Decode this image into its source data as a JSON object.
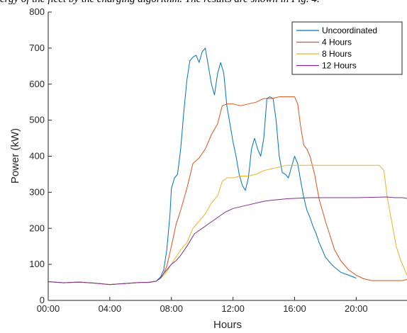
{
  "caption": "ergy of the fleet by the charging algorithm. The results are shown in Fig. 4.",
  "chart_data": {
    "type": "line",
    "title": "",
    "xlabel": "Hours",
    "ylabel": "Power (kW)",
    "xlim": [
      0,
      23.3
    ],
    "ylim": [
      0,
      800
    ],
    "xticks": [
      0,
      4,
      8,
      12,
      16,
      20
    ],
    "xtick_labels": [
      "00:00",
      "04:00",
      "08:00",
      "12:00",
      "16:00",
      "20:00"
    ],
    "yticks": [
      0,
      100,
      200,
      300,
      400,
      500,
      600,
      700,
      800
    ],
    "ytick_labels": [
      "0",
      "100",
      "200",
      "300",
      "400",
      "500",
      "600",
      "700",
      "800"
    ],
    "grid": false,
    "legend_position": "top-right",
    "series": [
      {
        "name": "Uncoordinated",
        "color": "#0072BD",
        "x": [
          0,
          1,
          2,
          3,
          4,
          5,
          6,
          6.5,
          7,
          7.3,
          7.5,
          7.7,
          7.9,
          8.0,
          8.2,
          8.4,
          8.6,
          8.8,
          9.0,
          9.2,
          9.4,
          9.6,
          9.8,
          10.0,
          10.2,
          10.4,
          10.6,
          10.8,
          11.0,
          11.2,
          11.4,
          11.6,
          11.8,
          12.0,
          12.2,
          12.4,
          12.6,
          12.8,
          13.0,
          13.2,
          13.4,
          13.6,
          13.8,
          14.0,
          14.2,
          14.4,
          14.6,
          14.8,
          15.0,
          15.2,
          15.4,
          15.6,
          15.8,
          16.0,
          16.2,
          16.4,
          16.6,
          16.8,
          17.0,
          17.2,
          17.4,
          17.6,
          17.8,
          18.0,
          18.2,
          18.4,
          18.6,
          18.8,
          19.0,
          19.5,
          20.0
        ],
        "y": [
          52,
          49,
          51,
          48,
          44,
          47,
          50,
          50,
          53,
          65,
          85,
          140,
          235,
          310,
          340,
          350,
          420,
          520,
          610,
          665,
          675,
          680,
          660,
          690,
          700,
          650,
          600,
          570,
          630,
          660,
          630,
          540,
          490,
          440,
          400,
          350,
          320,
          305,
          340,
          420,
          450,
          420,
          400,
          450,
          560,
          565,
          560,
          500,
          400,
          355,
          350,
          340,
          370,
          400,
          380,
          330,
          285,
          250,
          230,
          205,
          185,
          160,
          140,
          120,
          110,
          100,
          92,
          85,
          78,
          70,
          62
        ]
      },
      {
        "name": "4 Hours",
        "color": "#D95319",
        "x": [
          0,
          1,
          2,
          3,
          4,
          5,
          6,
          6.5,
          7,
          7.3,
          7.5,
          7.7,
          8.0,
          8.3,
          8.6,
          9.0,
          9.4,
          9.8,
          10.2,
          10.6,
          11.0,
          11.3,
          11.6,
          12.0,
          12.5,
          13.0,
          13.5,
          14.0,
          14.5,
          15.0,
          15.5,
          16.0,
          16.2,
          16.4,
          16.6,
          16.8,
          17.0,
          17.3,
          17.6,
          18.0,
          18.3,
          18.6,
          19.0,
          19.5,
          20.0,
          20.5,
          21.0,
          21.5,
          22.0,
          22.5,
          23.0,
          23.3
        ],
        "y": [
          52,
          49,
          51,
          48,
          44,
          47,
          50,
          50,
          53,
          62,
          75,
          95,
          150,
          210,
          250,
          310,
          380,
          395,
          420,
          460,
          490,
          540,
          545,
          545,
          540,
          545,
          550,
          560,
          560,
          565,
          565,
          565,
          545,
          480,
          430,
          420,
          400,
          350,
          280,
          220,
          180,
          140,
          110,
          85,
          70,
          60,
          55,
          55,
          55,
          55,
          55,
          58
        ]
      },
      {
        "name": "8 Hours",
        "color": "#EDB120",
        "x": [
          0,
          1,
          2,
          3,
          4,
          5,
          6,
          6.5,
          7,
          7.3,
          7.5,
          7.7,
          8.0,
          8.3,
          8.6,
          9.0,
          9.4,
          9.8,
          10.2,
          10.6,
          11.0,
          11.3,
          11.6,
          12.0,
          12.5,
          13.0,
          13.5,
          14.0,
          14.5,
          15.0,
          15.5,
          16.0,
          17.0,
          18.0,
          19.0,
          20.0,
          21.0,
          21.5,
          21.8,
          22.0,
          22.3,
          22.6,
          22.9,
          23.1,
          23.3
        ],
        "y": [
          52,
          49,
          51,
          48,
          44,
          47,
          50,
          50,
          53,
          62,
          70,
          80,
          100,
          120,
          140,
          160,
          200,
          220,
          240,
          270,
          290,
          330,
          340,
          340,
          345,
          345,
          350,
          360,
          365,
          370,
          375,
          375,
          375,
          375,
          375,
          375,
          375,
          375,
          360,
          290,
          220,
          150,
          110,
          90,
          70
        ]
      },
      {
        "name": "12 Hours",
        "color": "#7E2F8E",
        "x": [
          0,
          1,
          2,
          3,
          4,
          5,
          6,
          6.5,
          7,
          7.3,
          7.5,
          7.7,
          8.0,
          8.3,
          8.6,
          9.0,
          9.5,
          10.0,
          10.5,
          11.0,
          11.5,
          12.0,
          12.5,
          13.0,
          13.5,
          14.0,
          14.5,
          15.0,
          15.5,
          16.0,
          17.0,
          18.0,
          19.0,
          20.0,
          21.0,
          22.0,
          22.5,
          23.0,
          23.3
        ],
        "y": [
          52,
          49,
          51,
          48,
          44,
          47,
          50,
          50,
          53,
          62,
          75,
          85,
          100,
          110,
          125,
          150,
          185,
          200,
          215,
          230,
          245,
          255,
          260,
          265,
          270,
          275,
          278,
          280,
          282,
          283,
          285,
          285,
          285,
          285,
          286,
          287,
          285,
          285,
          283
        ]
      }
    ]
  }
}
